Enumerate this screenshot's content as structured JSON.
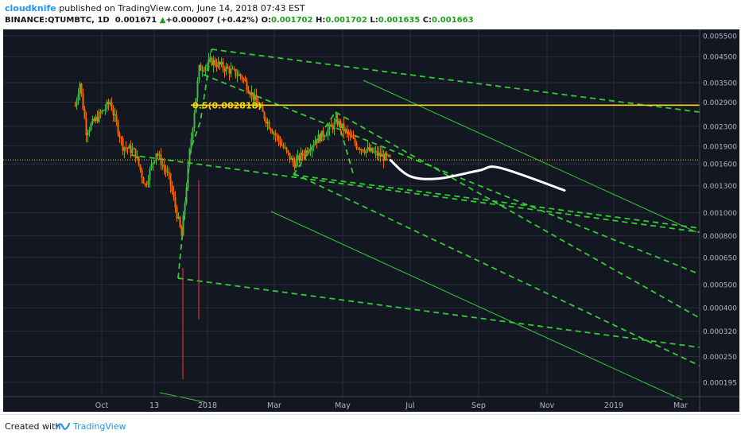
{
  "header": {
    "author": "cloudknife",
    "published_text": " published on TradingView.com, June 14, 2018 07:43 EST",
    "symbol": "BINANCE:QTUMBTC, 1D",
    "last": "0.001671",
    "change_arrow": "▲",
    "change": "+0.000007 (+0.42%)",
    "o_label": "O:",
    "o_value": "0.001702",
    "h_label": "H:",
    "h_value": "0.001702",
    "l_label": "L:",
    "l_value": "0.001635",
    "c_label": "C:",
    "c_value": "0.001663"
  },
  "footer": {
    "created_with": "Created with",
    "brand": "TradingView"
  },
  "colors": {
    "background": "#131722",
    "grid": "#2a2e39",
    "candle_up": "#4caf50",
    "candle_down": "#ef6c00",
    "wick_down": "#d32f2f",
    "trendline": "#32cd32",
    "fib_level": "#ffd700",
    "projection": "#ffffff",
    "price_line": "#ffd700"
  },
  "chart_data": {
    "type": "line",
    "x_ticks": [
      "Oct",
      "13",
      "2018",
      "Mar",
      "May",
      "Jul",
      "Sep",
      "Nov",
      "2019",
      "Mar"
    ],
    "y_ticks": [
      "0.005500",
      "0.004500",
      "0.003500",
      "0.002900",
      "0.002300",
      "0.001900",
      "0.001600",
      "0.001300",
      "0.001000",
      "0.000800",
      "0.000650",
      "0.000500",
      "0.000400",
      "0.000320",
      "0.000250",
      "0.000195"
    ],
    "y_scale": "log",
    "fib_label": "0.5(0.002818)",
    "fib_value": 0.002818,
    "last_price": 0.001663,
    "price_series": {
      "name": "QTUMBTC",
      "points": [
        [
          "Sep 2017",
          0.0028
        ],
        [
          "early Sep 2017",
          0.0035
        ],
        [
          "mid Sep 2017",
          0.0022
        ],
        [
          "Oct 2017",
          0.0029
        ],
        [
          "late Oct 2017",
          0.0019
        ],
        [
          "Nov 2017",
          0.0018
        ],
        [
          "mid Nov 2017",
          0.0013
        ],
        [
          "late Nov 2017",
          0.0018
        ],
        [
          "early Dec 2017",
          0.0014
        ],
        [
          "mid Dec 2017",
          0.0008
        ],
        [
          "late Dec 2017",
          0.0018
        ],
        [
          "2018",
          0.004
        ],
        [
          "mid Jan 2018",
          0.0043
        ],
        [
          "Feb 2018",
          0.0037
        ],
        [
          "Mar 2018",
          0.0023
        ],
        [
          "mid Mar 2018",
          0.0016
        ],
        [
          "Apr 2018",
          0.002
        ],
        [
          "late Apr 2018",
          0.0024
        ],
        [
          "May 2018",
          0.0019
        ],
        [
          "Jun 2018",
          0.001663
        ]
      ]
    },
    "projection": {
      "name": "",
      "points": [
        [
          "Jun 2018",
          0.00166
        ],
        [
          "Jul 2018",
          0.00142
        ],
        [
          "Aug 2018",
          0.00139
        ],
        [
          "Sep 2018",
          0.0015
        ],
        [
          "Oct 2018",
          0.00154
        ],
        [
          "Nov 2018",
          0.00124
        ]
      ]
    }
  }
}
